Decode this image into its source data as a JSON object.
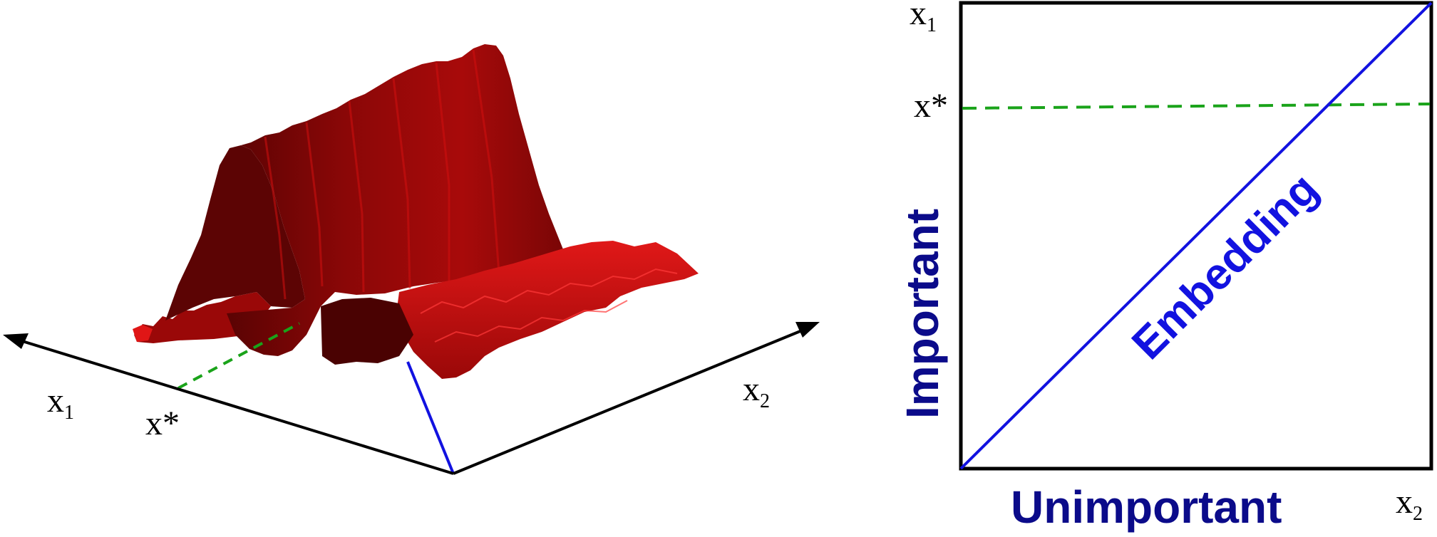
{
  "left_panel": {
    "axis_x1": {
      "main": "x",
      "sub": "1"
    },
    "axis_x2": {
      "main": "x",
      "sub": "2"
    },
    "x_star": "x*"
  },
  "right_panel": {
    "x1_label": {
      "main": "x",
      "sub": "1"
    },
    "x2_label": {
      "main": "x",
      "sub": "2"
    },
    "x_star": "x*",
    "embedding_label": "Embedding",
    "y_axis_label": "Important",
    "x_axis_label": "Unimportant"
  },
  "colors": {
    "surface": "#b80c0c",
    "surface_dark": "#6e0505",
    "axes": "#000000",
    "embedding": "#1212e0",
    "label_blue": "#0b0b8a",
    "x_star_line": "#1aa31a"
  }
}
